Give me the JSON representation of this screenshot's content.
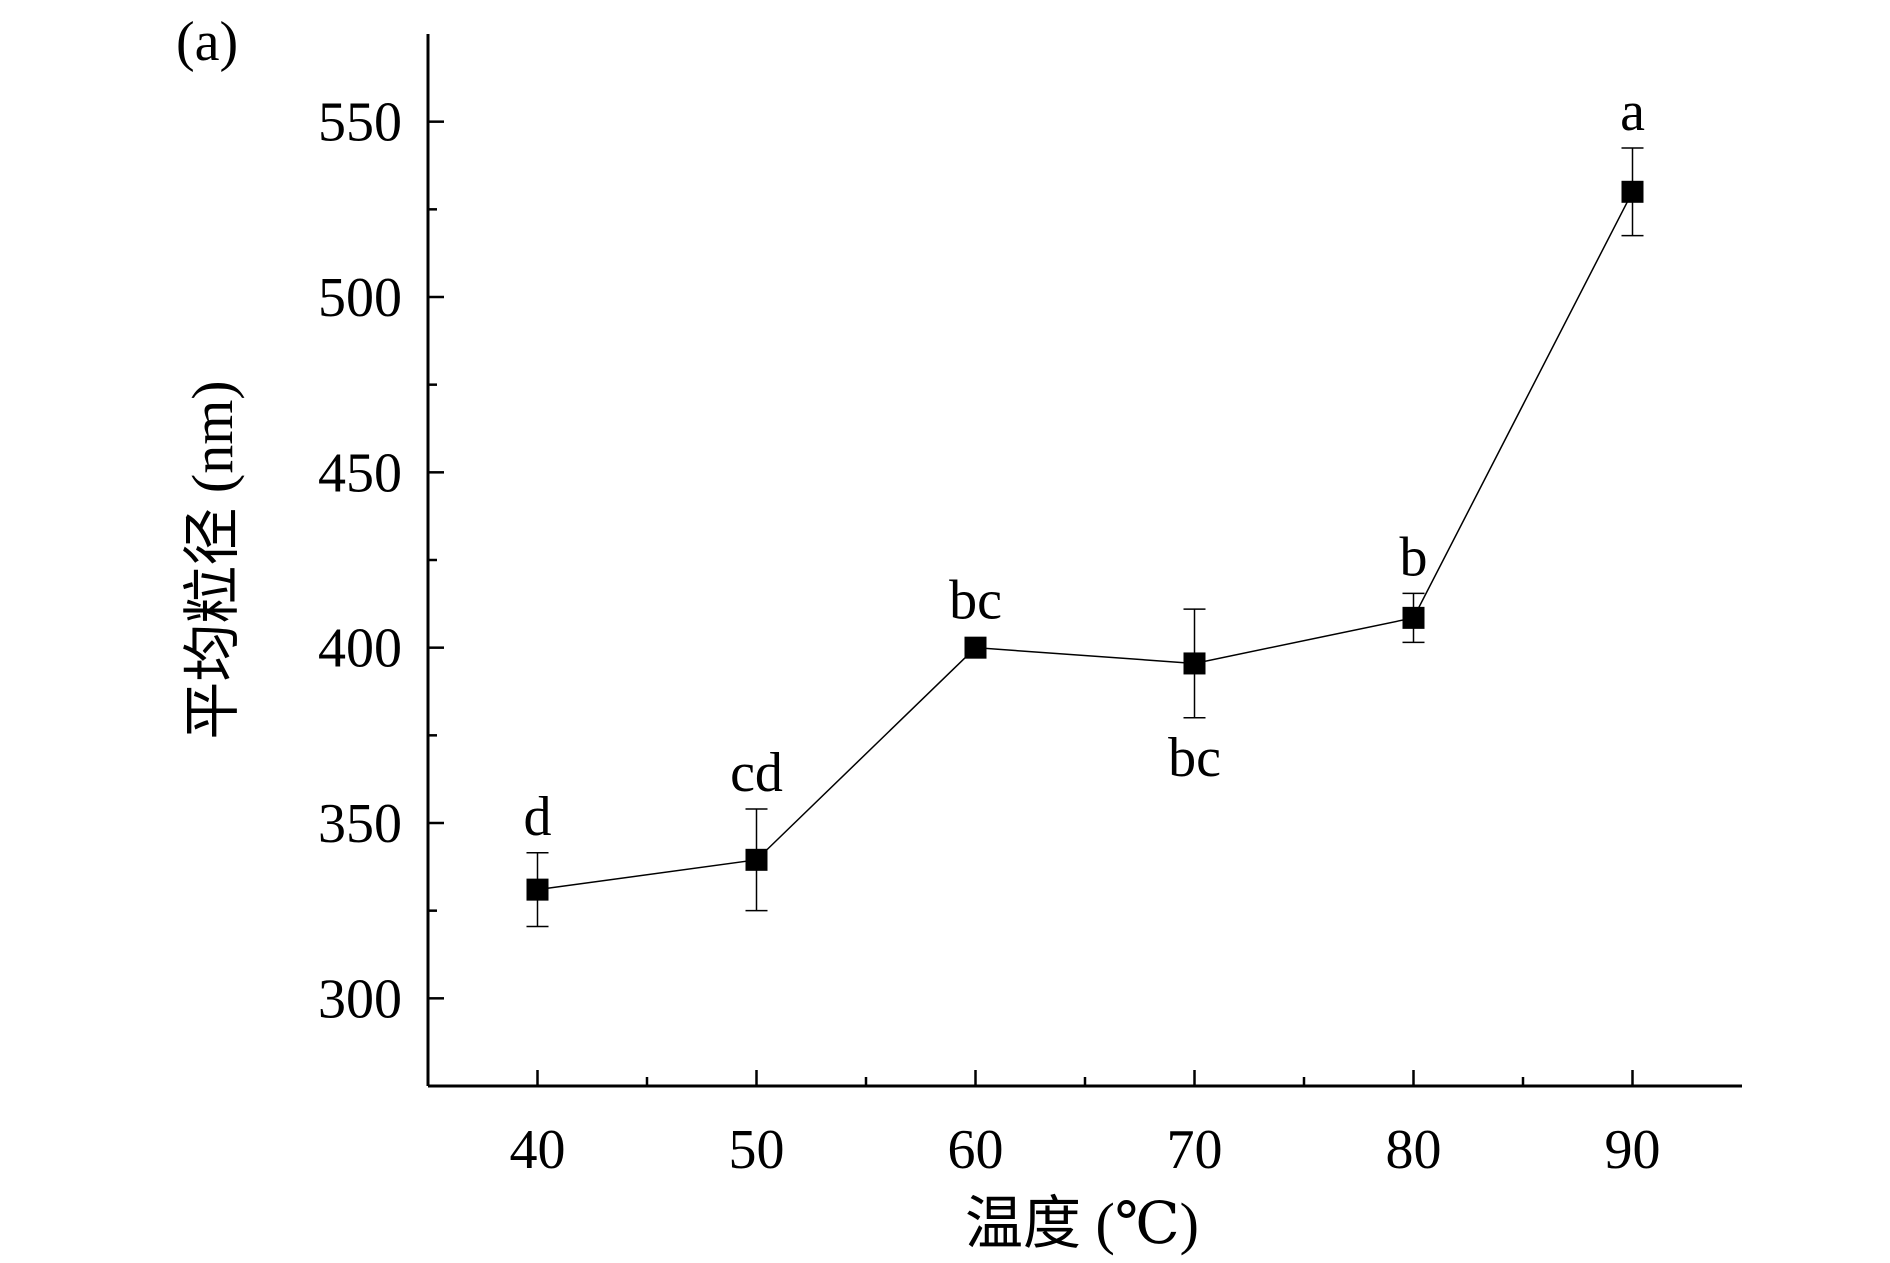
{
  "chart_data": {
    "type": "line",
    "panel_label": "(a)",
    "xlabel": "温度 (℃)",
    "ylabel": "平均粒径 (nm)",
    "xlim": [
      35,
      95
    ],
    "ylim": [
      275,
      575
    ],
    "x_ticks": [
      40,
      50,
      60,
      70,
      80,
      90
    ],
    "y_ticks": [
      300,
      350,
      400,
      450,
      500,
      550
    ],
    "x_minor_ticks": [
      45,
      55,
      65,
      75,
      85
    ],
    "y_minor_ticks": [
      325,
      375,
      425,
      475,
      525
    ],
    "marker": "square",
    "grid": false,
    "series": [
      {
        "x": [
          40,
          50,
          60,
          70,
          80,
          90
        ],
        "y": [
          331,
          339.5,
          400,
          395.5,
          408.5,
          530
        ],
        "error": [
          10.5,
          14.5,
          0,
          15.5,
          7,
          12.5
        ],
        "significance": [
          "d",
          "cd",
          "bc",
          "bc",
          "b",
          "a"
        ],
        "label_position": [
          "above",
          "above",
          "above",
          "below",
          "above",
          "above"
        ]
      }
    ]
  }
}
